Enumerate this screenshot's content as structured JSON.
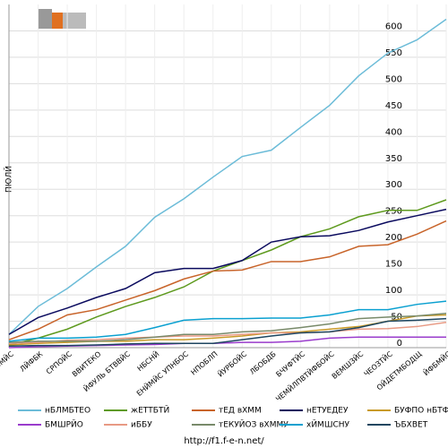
{
  "chart_data": {
    "type": "line",
    "y_label": "ПЮЛЙ",
    "footer": "http://f1.f-e-n.net/",
    "categories": [
      "ФФТБМЙС",
      "ЛЙФБК",
      "СРПОЙС",
      "ВВИТЕКО",
      "ЙФУЛЬ БТВВЙС",
      "НБСНЙ",
      "ЕНЙМЙС УПНБОС",
      "НПОБЛП",
      "ЙУРБОЙС",
      "ЛБОБДБ",
      "БЧУФТЙС",
      "ЧЕМЙЛПВТЙФБОЙС",
      "ВЕМШЗЙС",
      "ЧЕОЗТЙС",
      "ОЙДЕТМБОДЩ",
      "ЙФБМЙС"
    ],
    "ylim": [
      0,
      650
    ],
    "yticks": [
      0,
      50,
      100,
      150,
      200,
      250,
      300,
      350,
      400,
      450,
      500,
      550,
      600
    ],
    "grid": true,
    "series": [
      {
        "name": "нБЛМБТЕО",
        "color": "#6cbcd8",
        "values": [
          25,
          78,
          112,
          153,
          192,
          247,
          282,
          323,
          362,
          374,
          417,
          459,
          515,
          558,
          583,
          622
        ]
      },
      {
        "name": "жЕТТБТЙ",
        "color": "#5e9a1e",
        "values": [
          5,
          18,
          35,
          58,
          78,
          95,
          115,
          145,
          165,
          185,
          210,
          225,
          248,
          260,
          260,
          280
        ]
      },
      {
        "name": "тЕД вХММ",
        "color": "#c8642a",
        "values": [
          15,
          35,
          62,
          72,
          90,
          108,
          130,
          145,
          147,
          163,
          163,
          172,
          192,
          195,
          215,
          240
        ]
      },
      {
        "name": "нЕТУЕДЕУ",
        "color": "#0a0a5e",
        "values": [
          25,
          57,
          75,
          95,
          112,
          142,
          150,
          150,
          165,
          200,
          210,
          212,
          222,
          238,
          250,
          262
        ]
      },
      {
        "name": "БУФПО нБТФЙО",
        "color": "#c89a28",
        "values": [
          5,
          8,
          10,
          12,
          12,
          15,
          15,
          18,
          22,
          28,
          30,
          35,
          40,
          50,
          60,
          62
        ]
      },
      {
        "name": "БМШРЙО",
        "color": "#9a3ccc",
        "values": [
          0,
          2,
          3,
          4,
          5,
          6,
          8,
          8,
          10,
          10,
          12,
          18,
          20,
          20,
          20,
          20
        ]
      },
      {
        "name": "иББУ",
        "color": "#e89a84",
        "values": [
          8,
          10,
          14,
          15,
          18,
          20,
          22,
          22,
          25,
          28,
          28,
          30,
          35,
          36,
          40,
          48
        ]
      },
      {
        "name": "тЕКУЙОЗ вХММУ",
        "color": "#788a6a",
        "values": [
          10,
          12,
          12,
          12,
          15,
          20,
          25,
          25,
          30,
          32,
          38,
          45,
          55,
          58,
          60,
          65
        ]
      },
      {
        "name": "хЙМШСНУ",
        "color": "#0aa0d0",
        "values": [
          12,
          18,
          18,
          20,
          25,
          38,
          52,
          55,
          55,
          56,
          56,
          62,
          72,
          72,
          82,
          88
        ]
      },
      {
        "name": "ЪБХВЕТ",
        "color": "#1e4660",
        "values": [
          3,
          4,
          4,
          5,
          7,
          8,
          8,
          8,
          15,
          22,
          28,
          30,
          38,
          50,
          52,
          55
        ]
      }
    ]
  }
}
